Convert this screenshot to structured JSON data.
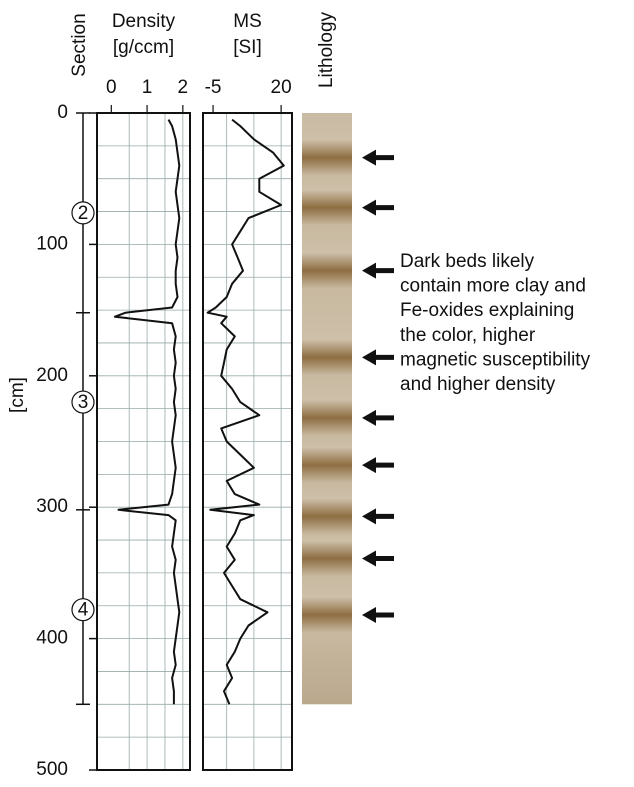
{
  "chart_data": [
    {
      "type": "line",
      "title": "Density",
      "subtitle": "[g/ccm]",
      "xlim": [
        -0.4,
        2.2
      ],
      "xticks": [
        0,
        1,
        2
      ],
      "xgrid": [
        0.5,
        1,
        1.5,
        2
      ],
      "color": "#111111",
      "depth": [
        5,
        10,
        20,
        30,
        40,
        50,
        60,
        70,
        80,
        90,
        100,
        110,
        120,
        130,
        140,
        148,
        152,
        155,
        160,
        170,
        180,
        190,
        200,
        210,
        220,
        230,
        240,
        250,
        260,
        270,
        280,
        290,
        298,
        302,
        306,
        310,
        320,
        330,
        340,
        350,
        360,
        370,
        380,
        390,
        400,
        410,
        420,
        430,
        440,
        450
      ],
      "values": [
        1.6,
        1.7,
        1.8,
        1.85,
        1.9,
        1.85,
        1.8,
        1.85,
        1.9,
        1.85,
        1.8,
        1.85,
        1.8,
        1.8,
        1.85,
        1.7,
        0.4,
        0.1,
        1.7,
        1.8,
        1.75,
        1.8,
        1.75,
        1.8,
        1.75,
        1.8,
        1.75,
        1.7,
        1.75,
        1.8,
        1.75,
        1.7,
        1.6,
        0.2,
        1.6,
        1.8,
        1.75,
        1.7,
        1.8,
        1.75,
        1.8,
        1.85,
        1.9,
        1.85,
        1.8,
        1.75,
        1.8,
        1.7,
        1.75,
        1.75
      ]
    },
    {
      "type": "line",
      "title": "MS",
      "subtitle": "[SI]",
      "xlim": [
        -8.7,
        24
      ],
      "xticks": [
        -5,
        20
      ],
      "xgrid": [
        0,
        10,
        20
      ],
      "color": "#111111",
      "depth": [
        5,
        10,
        20,
        30,
        40,
        50,
        60,
        70,
        80,
        90,
        100,
        110,
        120,
        130,
        140,
        148,
        152,
        155,
        160,
        170,
        180,
        190,
        200,
        210,
        220,
        230,
        240,
        250,
        260,
        270,
        280,
        290,
        298,
        302,
        306,
        310,
        320,
        330,
        340,
        350,
        360,
        370,
        380,
        390,
        400,
        410,
        420,
        430,
        440,
        450
      ],
      "values": [
        2,
        5,
        10,
        17,
        21,
        12,
        12,
        20,
        8,
        5,
        2,
        4,
        6,
        2,
        0,
        -4,
        -7,
        0,
        -2,
        3,
        0,
        -1,
        -2,
        2,
        5,
        12,
        -2,
        0,
        5,
        10,
        0,
        3,
        12,
        -6,
        10,
        5,
        3,
        0,
        3,
        -1,
        2,
        5,
        15,
        8,
        5,
        3,
        0,
        2,
        -1,
        1
      ]
    }
  ],
  "depth_axis": {
    "label": "[cm]",
    "ylim": [
      0,
      500
    ],
    "yticks": [
      0,
      100,
      200,
      300,
      400,
      500
    ],
    "ygrid": [
      25,
      50,
      75,
      100,
      125,
      150,
      175,
      200,
      225,
      250,
      275,
      300,
      325,
      350,
      375,
      400,
      425,
      450,
      475
    ]
  },
  "sections": {
    "label": "Section",
    "boundaries": [
      0,
      152,
      302,
      450
    ],
    "items": [
      {
        "label": "2",
        "depth": 76
      },
      {
        "label": "3",
        "depth": 220
      },
      {
        "label": "4",
        "depth": 378
      }
    ]
  },
  "lithology": {
    "label": "Lithology",
    "bottom": 450,
    "arrows": [
      34,
      72,
      120,
      186,
      232,
      268,
      307,
      339,
      382
    ],
    "annotation": [
      "Dark beds likely",
      "contain more clay and",
      "Fe-oxides explaining",
      "the color, higher",
      "magnetic susceptibility",
      "and higher density"
    ]
  }
}
